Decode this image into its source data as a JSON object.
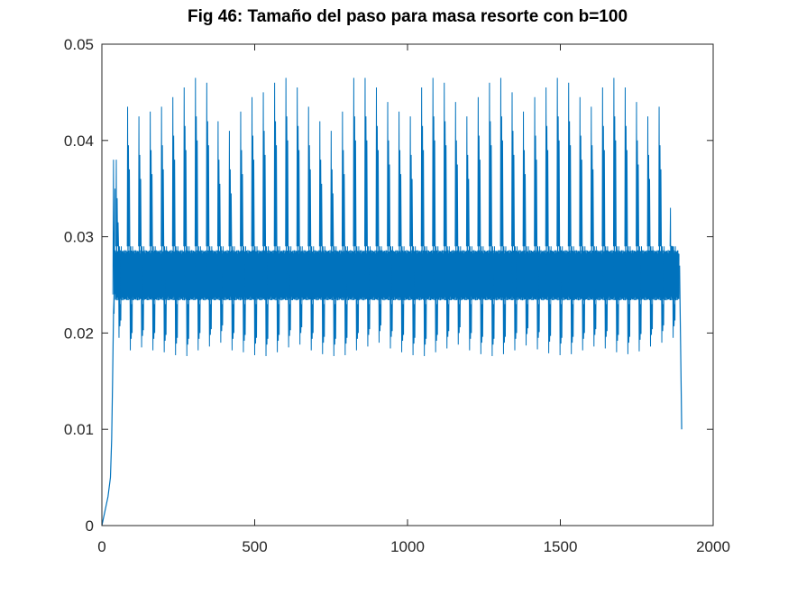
{
  "chart_data": {
    "type": "line",
    "title": "Fig 46: Tamaño del paso para masa resorte con b=100",
    "xlabel": "",
    "ylabel": "",
    "xlim": [
      0,
      2000
    ],
    "ylim": [
      0,
      0.05
    ],
    "xticks": [
      0,
      500,
      1000,
      1500,
      2000
    ],
    "xtick_labels": [
      "0",
      "500",
      "1000",
      "1500",
      "2000"
    ],
    "yticks": [
      0,
      0.01,
      0.02,
      0.03,
      0.04,
      0.05
    ],
    "ytick_labels": [
      "0",
      "0.01",
      "0.02",
      "0.03",
      "0.04",
      "0.05"
    ],
    "grid": false,
    "series": [
      {
        "color": "#0072bd",
        "x_range": [
          0,
          1897
        ],
        "startup_points": [
          [
            0,
            0
          ],
          [
            10,
            0.0015
          ],
          [
            20,
            0.003
          ],
          [
            28,
            0.005
          ],
          [
            32,
            0.009
          ],
          [
            35,
            0.015
          ],
          [
            38,
            0.022
          ],
          [
            42,
            0.026
          ]
        ],
        "end_points": [
          [
            1890,
            0.027
          ],
          [
            1895,
            0.015
          ],
          [
            1897,
            0.01
          ]
        ],
        "band_low": 0.023,
        "band_high": 0.029,
        "peak_period": 37,
        "peak_values": [
          0.038,
          0.0435,
          0.0425,
          0.043,
          0.0435,
          0.0445,
          0.0455,
          0.0465,
          0.046,
          0.042,
          0.041,
          0.043,
          0.0445,
          0.045,
          0.046,
          0.0465,
          0.0455,
          0.0435,
          0.042,
          0.041,
          0.043,
          0.0465,
          0.0465,
          0.0455,
          0.044,
          0.043,
          0.0425,
          0.0455,
          0.0465,
          0.046,
          0.044,
          0.0425,
          0.0445,
          0.046,
          0.0465,
          0.045,
          0.043,
          0.0445,
          0.0455,
          0.0465,
          0.046,
          0.0445,
          0.0435,
          0.0455,
          0.0465,
          0.0455,
          0.044,
          0.0425,
          0.0435,
          0.033
        ],
        "trough_values": [
          0.0195,
          0.0182,
          0.0185,
          0.0182,
          0.018,
          0.0177,
          0.0176,
          0.0182,
          0.0186,
          0.019,
          0.0182,
          0.018,
          0.0177,
          0.0176,
          0.018,
          0.0185,
          0.0188,
          0.0182,
          0.0178,
          0.0176,
          0.0177,
          0.0182,
          0.0186,
          0.019,
          0.0184,
          0.018,
          0.0177,
          0.0176,
          0.018,
          0.0184,
          0.0188,
          0.0182,
          0.0178,
          0.0176,
          0.0178,
          0.0182,
          0.0187,
          0.0183,
          0.0179,
          0.0177,
          0.0178,
          0.0182,
          0.0186,
          0.0184,
          0.018,
          0.0178,
          0.0181,
          0.0186,
          0.019,
          0.0195
        ]
      }
    ]
  }
}
